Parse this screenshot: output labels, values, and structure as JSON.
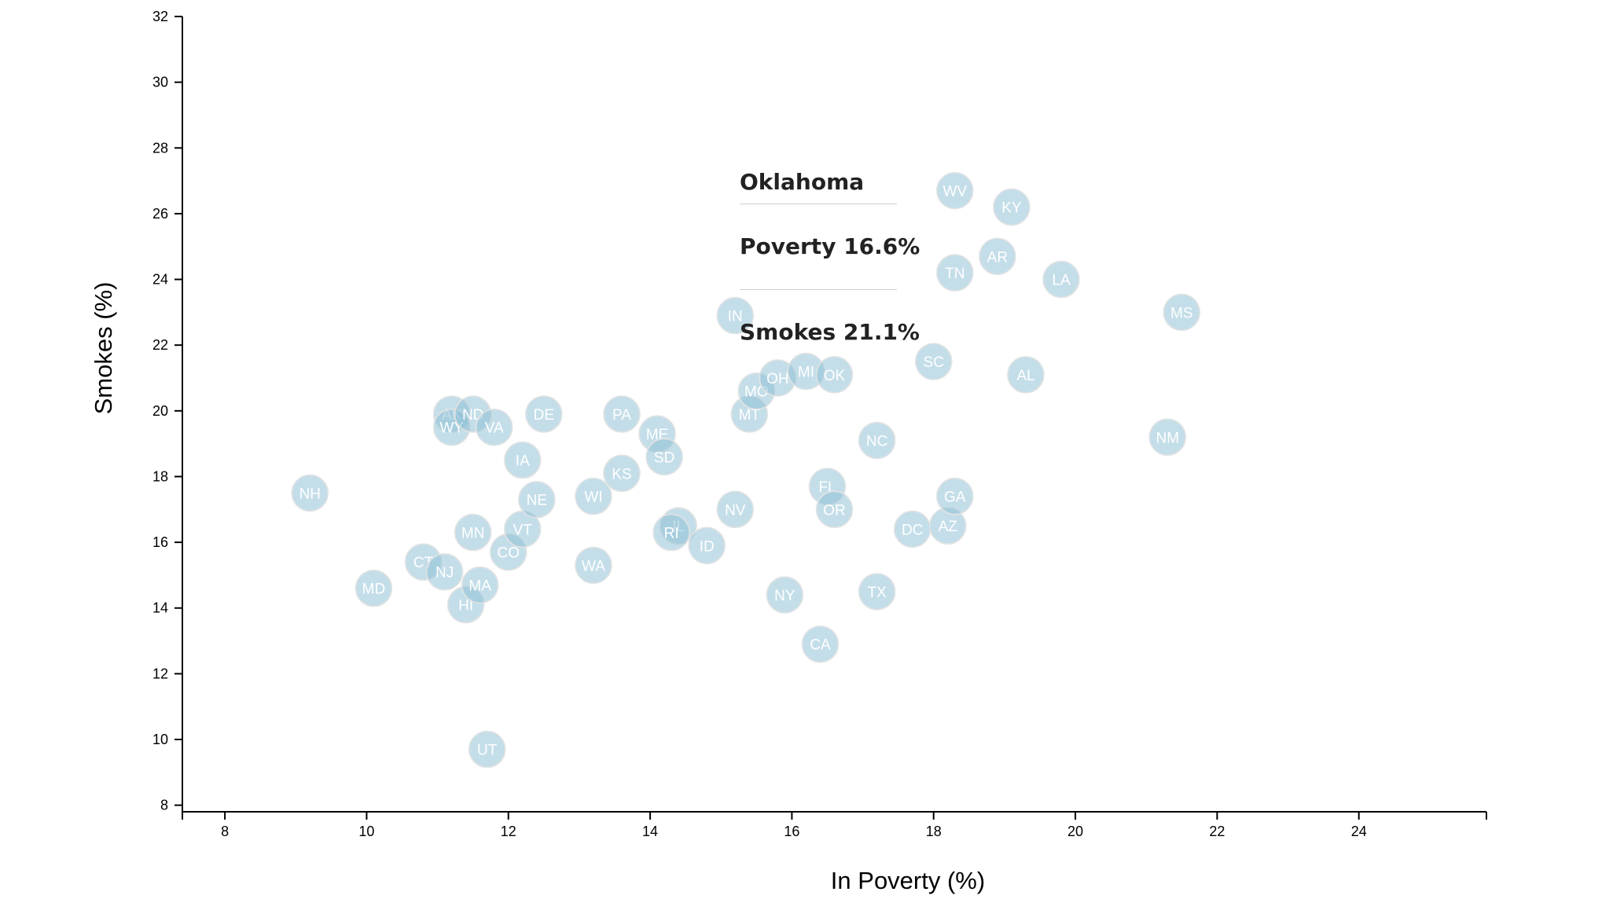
{
  "chart_data": {
    "type": "scatter",
    "xlabel": "In Poverty (%)",
    "ylabel": "Smokes (%)",
    "xlim": [
      7.4,
      25.8
    ],
    "ylim": [
      7.8,
      32
    ],
    "xticks": [
      8,
      10,
      12,
      14,
      16,
      18,
      20,
      22,
      24
    ],
    "yticks": [
      8,
      10,
      12,
      14,
      16,
      18,
      20,
      22,
      24,
      26,
      28,
      30,
      32
    ],
    "marker_color": "#89bdd3",
    "points": [
      {
        "label": "NH",
        "x": 9.2,
        "y": 17.5
      },
      {
        "label": "MD",
        "x": 10.1,
        "y": 14.6
      },
      {
        "label": "CT",
        "x": 10.8,
        "y": 15.4
      },
      {
        "label": "NJ",
        "x": 11.1,
        "y": 15.1
      },
      {
        "label": "AK",
        "x": 11.2,
        "y": 19.9
      },
      {
        "label": "WY",
        "x": 11.2,
        "y": 19.5
      },
      {
        "label": "ND",
        "x": 11.5,
        "y": 19.9
      },
      {
        "label": "MN",
        "x": 11.5,
        "y": 16.3
      },
      {
        "label": "HI",
        "x": 11.4,
        "y": 14.1
      },
      {
        "label": "MA",
        "x": 11.6,
        "y": 14.7
      },
      {
        "label": "UT",
        "x": 11.7,
        "y": 9.7
      },
      {
        "label": "VA",
        "x": 11.8,
        "y": 19.5
      },
      {
        "label": "CO",
        "x": 12.0,
        "y": 15.7
      },
      {
        "label": "IA",
        "x": 12.2,
        "y": 18.5
      },
      {
        "label": "VT",
        "x": 12.2,
        "y": 16.4
      },
      {
        "label": "NE",
        "x": 12.4,
        "y": 17.3
      },
      {
        "label": "DE",
        "x": 12.5,
        "y": 19.9
      },
      {
        "label": "WI",
        "x": 13.2,
        "y": 17.4
      },
      {
        "label": "WA",
        "x": 13.2,
        "y": 15.3
      },
      {
        "label": "PA",
        "x": 13.6,
        "y": 19.9
      },
      {
        "label": "KS",
        "x": 13.6,
        "y": 18.1
      },
      {
        "label": "ME",
        "x": 14.1,
        "y": 19.3
      },
      {
        "label": "SD",
        "x": 14.2,
        "y": 18.6
      },
      {
        "label": "IL",
        "x": 14.4,
        "y": 16.5
      },
      {
        "label": "RI",
        "x": 14.3,
        "y": 16.3
      },
      {
        "label": "ID",
        "x": 14.8,
        "y": 15.9
      },
      {
        "label": "IN",
        "x": 15.2,
        "y": 22.9
      },
      {
        "label": "NV",
        "x": 15.2,
        "y": 17.0
      },
      {
        "label": "MT",
        "x": 15.4,
        "y": 19.9
      },
      {
        "label": "MO",
        "x": 15.5,
        "y": 20.6
      },
      {
        "label": "OH",
        "x": 15.8,
        "y": 21.0
      },
      {
        "label": "NY",
        "x": 15.9,
        "y": 14.4
      },
      {
        "label": "MI",
        "x": 16.2,
        "y": 21.2
      },
      {
        "label": "CA",
        "x": 16.4,
        "y": 12.9
      },
      {
        "label": "FL",
        "x": 16.5,
        "y": 17.7
      },
      {
        "label": "OK",
        "x": 16.6,
        "y": 21.1
      },
      {
        "label": "OR",
        "x": 16.6,
        "y": 17.0
      },
      {
        "label": "NC",
        "x": 17.2,
        "y": 19.1
      },
      {
        "label": "TX",
        "x": 17.2,
        "y": 14.5
      },
      {
        "label": "DC",
        "x": 17.7,
        "y": 16.4
      },
      {
        "label": "SC",
        "x": 18.0,
        "y": 21.5
      },
      {
        "label": "AZ",
        "x": 18.2,
        "y": 16.5
      },
      {
        "label": "WV",
        "x": 18.3,
        "y": 26.7
      },
      {
        "label": "TN",
        "x": 18.3,
        "y": 24.2
      },
      {
        "label": "GA",
        "x": 18.3,
        "y": 17.4
      },
      {
        "label": "AR",
        "x": 18.9,
        "y": 24.7
      },
      {
        "label": "KY",
        "x": 19.1,
        "y": 26.2
      },
      {
        "label": "AL",
        "x": 19.3,
        "y": 21.1
      },
      {
        "label": "LA",
        "x": 19.8,
        "y": 24.0
      },
      {
        "label": "NM",
        "x": 21.3,
        "y": 19.2
      },
      {
        "label": "MS",
        "x": 21.5,
        "y": 23.0
      }
    ]
  },
  "tooltip": {
    "title": "Oklahoma",
    "poverty": "Poverty 16.6%",
    "smokes": "Smokes 21.1%"
  }
}
